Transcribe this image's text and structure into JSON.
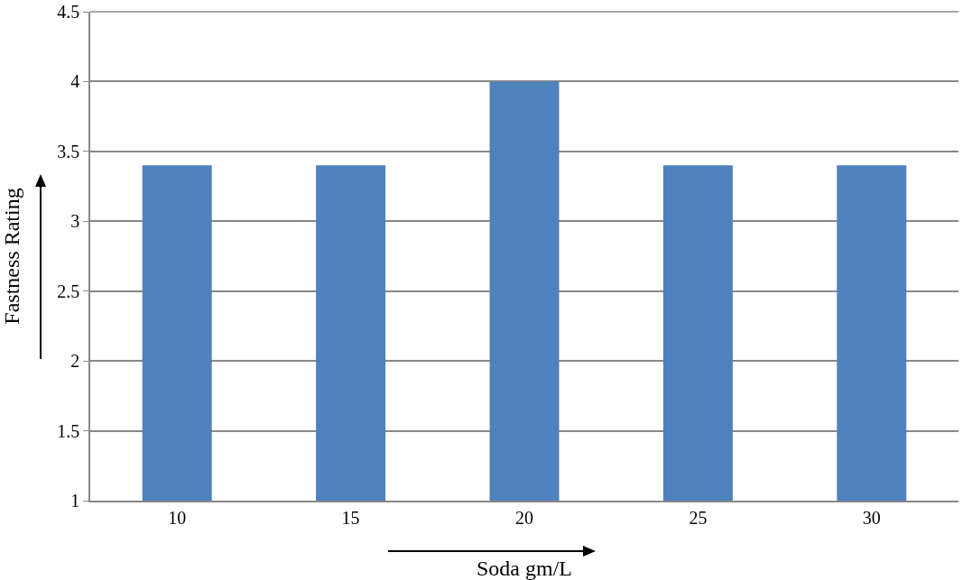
{
  "chart_data": {
    "type": "bar",
    "xlabel": "Soda gm/L",
    "ylabel": "Fastness Rating",
    "categories": [
      "10",
      "15",
      "20",
      "25",
      "30"
    ],
    "values": [
      3.4,
      3.4,
      4,
      3.4,
      3.4
    ],
    "color": "#4f81bd",
    "ylim": [
      1,
      4.5
    ],
    "yticks": [
      1,
      1.5,
      2,
      2.5,
      3,
      3.5,
      4,
      4.5
    ],
    "grid": "y"
  }
}
